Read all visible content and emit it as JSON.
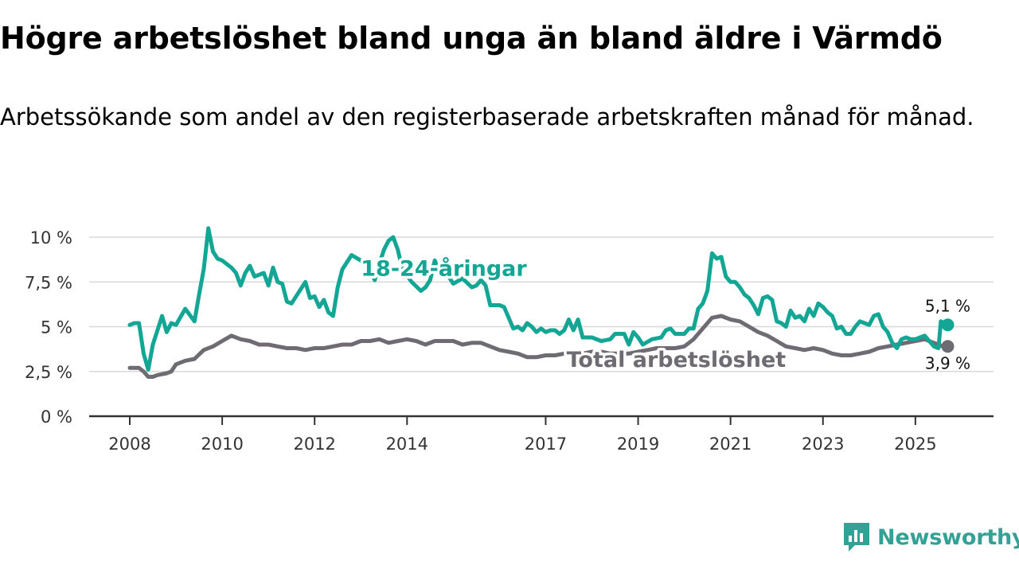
{
  "title": "Högre arbetslöshet bland unga än bland äldre i Värmdö",
  "subtitle": "Arbetssökande som andel av den registerbaserade arbetskraften månad för månad.",
  "brand": {
    "name": "Newsworthy",
    "icon": "newsworthy-logo-icon",
    "color": "#33a196"
  },
  "chart_data": {
    "type": "line",
    "title": "Högre arbetslöshet bland unga än bland äldre i Värmdö",
    "xlabel": "",
    "ylabel": "",
    "xlim": [
      2008,
      2025.95
    ],
    "ylim": [
      0,
      10
    ],
    "grid": true,
    "y_ticks": [
      0,
      2.5,
      5,
      7.5,
      10
    ],
    "y_tick_labels": [
      "0 %",
      "2,5 %",
      "5 %",
      "7,5 %",
      "10 %"
    ],
    "x_ticks": [
      2008,
      2010,
      2012,
      2014,
      2017,
      2019,
      2021,
      2023,
      2025
    ],
    "x_tick_labels": [
      "2008",
      "2010",
      "2012",
      "2014",
      "2017",
      "2019",
      "2021",
      "2023",
      "2025"
    ],
    "series": [
      {
        "name": "18-24-åringar",
        "color": "#13a694",
        "end_value": 5.1,
        "end_label": "5,1 %",
        "points": [
          [
            2008.0,
            5.1
          ],
          [
            2008.1,
            5.2
          ],
          [
            2008.2,
            5.2
          ],
          [
            2008.3,
            3.5
          ],
          [
            2008.4,
            2.6
          ],
          [
            2008.5,
            4.0
          ],
          [
            2008.7,
            5.6
          ],
          [
            2008.8,
            4.7
          ],
          [
            2008.9,
            5.2
          ],
          [
            2009.0,
            5.1
          ],
          [
            2009.2,
            6.0
          ],
          [
            2009.4,
            5.3
          ],
          [
            2009.5,
            6.8
          ],
          [
            2009.6,
            8.2
          ],
          [
            2009.7,
            10.5
          ],
          [
            2009.8,
            9.2
          ],
          [
            2009.9,
            8.8
          ],
          [
            2010.0,
            8.7
          ],
          [
            2010.2,
            8.3
          ],
          [
            2010.3,
            8.0
          ],
          [
            2010.4,
            7.3
          ],
          [
            2010.5,
            8.0
          ],
          [
            2010.6,
            8.4
          ],
          [
            2010.7,
            7.8
          ],
          [
            2010.9,
            8.0
          ],
          [
            2011.0,
            7.3
          ],
          [
            2011.1,
            8.3
          ],
          [
            2011.2,
            7.5
          ],
          [
            2011.3,
            7.4
          ],
          [
            2011.4,
            6.4
          ],
          [
            2011.5,
            6.3
          ],
          [
            2011.6,
            6.7
          ],
          [
            2011.8,
            7.5
          ],
          [
            2011.9,
            6.6
          ],
          [
            2012.0,
            6.7
          ],
          [
            2012.1,
            6.1
          ],
          [
            2012.2,
            6.5
          ],
          [
            2012.3,
            5.8
          ],
          [
            2012.4,
            5.6
          ],
          [
            2012.5,
            7.2
          ],
          [
            2012.6,
            8.2
          ],
          [
            2012.8,
            9.0
          ],
          [
            2013.0,
            8.7
          ],
          [
            2013.2,
            8.2
          ],
          [
            2013.3,
            7.6
          ],
          [
            2013.4,
            8.5
          ],
          [
            2013.5,
            9.3
          ],
          [
            2013.6,
            9.8
          ],
          [
            2013.7,
            10.0
          ],
          [
            2013.8,
            9.3
          ],
          [
            2013.9,
            8.2
          ],
          [
            2014.1,
            7.5
          ],
          [
            2014.3,
            7.0
          ],
          [
            2014.4,
            7.2
          ],
          [
            2014.5,
            7.6
          ],
          [
            2014.6,
            8.7
          ],
          [
            2014.7,
            8.1
          ],
          [
            2014.9,
            7.8
          ],
          [
            2015.0,
            7.4
          ],
          [
            2015.2,
            7.7
          ],
          [
            2015.4,
            7.2
          ],
          [
            2015.5,
            7.3
          ],
          [
            2015.6,
            7.6
          ],
          [
            2015.7,
            7.3
          ],
          [
            2015.8,
            6.2
          ],
          [
            2016.0,
            6.2
          ],
          [
            2016.1,
            6.1
          ],
          [
            2016.2,
            5.5
          ],
          [
            2016.3,
            4.9
          ],
          [
            2016.4,
            5.0
          ],
          [
            2016.5,
            4.8
          ],
          [
            2016.6,
            5.2
          ],
          [
            2016.7,
            5.0
          ],
          [
            2016.8,
            4.7
          ],
          [
            2016.9,
            4.9
          ],
          [
            2017.0,
            4.7
          ],
          [
            2017.1,
            4.8
          ],
          [
            2017.2,
            4.8
          ],
          [
            2017.3,
            4.6
          ],
          [
            2017.4,
            4.8
          ],
          [
            2017.5,
            5.4
          ],
          [
            2017.6,
            4.8
          ],
          [
            2017.7,
            5.4
          ],
          [
            2017.8,
            4.4
          ],
          [
            2018.0,
            4.4
          ],
          [
            2018.2,
            4.2
          ],
          [
            2018.4,
            4.3
          ],
          [
            2018.5,
            4.6
          ],
          [
            2018.7,
            4.6
          ],
          [
            2018.8,
            4.0
          ],
          [
            2018.9,
            4.7
          ],
          [
            2019.0,
            4.4
          ],
          [
            2019.1,
            4.0
          ],
          [
            2019.3,
            4.3
          ],
          [
            2019.5,
            4.4
          ],
          [
            2019.6,
            4.8
          ],
          [
            2019.7,
            4.9
          ],
          [
            2019.8,
            4.6
          ],
          [
            2019.9,
            4.6
          ],
          [
            2020.0,
            4.6
          ],
          [
            2020.1,
            4.9
          ],
          [
            2020.2,
            4.9
          ],
          [
            2020.3,
            6.0
          ],
          [
            2020.4,
            6.3
          ],
          [
            2020.5,
            7.0
          ],
          [
            2020.6,
            9.1
          ],
          [
            2020.7,
            8.8
          ],
          [
            2020.8,
            8.9
          ],
          [
            2020.9,
            7.8
          ],
          [
            2021.0,
            7.5
          ],
          [
            2021.1,
            7.5
          ],
          [
            2021.2,
            7.2
          ],
          [
            2021.3,
            6.8
          ],
          [
            2021.4,
            6.6
          ],
          [
            2021.5,
            6.2
          ],
          [
            2021.6,
            5.7
          ],
          [
            2021.7,
            6.6
          ],
          [
            2021.8,
            6.7
          ],
          [
            2021.9,
            6.5
          ],
          [
            2022.0,
            5.3
          ],
          [
            2022.1,
            5.2
          ],
          [
            2022.2,
            5.0
          ],
          [
            2022.3,
            5.9
          ],
          [
            2022.4,
            5.5
          ],
          [
            2022.5,
            5.6
          ],
          [
            2022.6,
            5.3
          ],
          [
            2022.7,
            6.0
          ],
          [
            2022.8,
            5.6
          ],
          [
            2022.9,
            6.3
          ],
          [
            2023.0,
            6.1
          ],
          [
            2023.1,
            5.8
          ],
          [
            2023.2,
            5.6
          ],
          [
            2023.3,
            4.9
          ],
          [
            2023.4,
            5.0
          ],
          [
            2023.5,
            4.6
          ],
          [
            2023.6,
            4.6
          ],
          [
            2023.7,
            5.0
          ],
          [
            2023.8,
            5.3
          ],
          [
            2023.9,
            5.2
          ],
          [
            2024.0,
            5.1
          ],
          [
            2024.1,
            5.6
          ],
          [
            2024.2,
            5.7
          ],
          [
            2024.3,
            5.0
          ],
          [
            2024.4,
            4.7
          ],
          [
            2024.5,
            4.1
          ],
          [
            2024.6,
            3.8
          ],
          [
            2024.7,
            4.3
          ],
          [
            2024.8,
            4.4
          ],
          [
            2024.9,
            4.3
          ],
          [
            2025.0,
            4.3
          ],
          [
            2025.1,
            4.4
          ],
          [
            2025.2,
            4.5
          ],
          [
            2025.3,
            4.2
          ],
          [
            2025.4,
            3.9
          ],
          [
            2025.5,
            3.8
          ],
          [
            2025.55,
            5.3
          ],
          [
            2025.7,
            5.1
          ]
        ]
      },
      {
        "name": "Total arbetslöshet",
        "color": "#6e6b72",
        "end_value": 3.9,
        "end_label": "3,9 %",
        "points": [
          [
            2008.0,
            2.7
          ],
          [
            2008.2,
            2.7
          ],
          [
            2008.3,
            2.5
          ],
          [
            2008.4,
            2.2
          ],
          [
            2008.5,
            2.2
          ],
          [
            2008.6,
            2.3
          ],
          [
            2008.8,
            2.4
          ],
          [
            2008.9,
            2.5
          ],
          [
            2009.0,
            2.9
          ],
          [
            2009.2,
            3.1
          ],
          [
            2009.4,
            3.2
          ],
          [
            2009.6,
            3.7
          ],
          [
            2009.8,
            3.9
          ],
          [
            2010.0,
            4.2
          ],
          [
            2010.2,
            4.5
          ],
          [
            2010.4,
            4.3
          ],
          [
            2010.6,
            4.2
          ],
          [
            2010.8,
            4.0
          ],
          [
            2011.0,
            4.0
          ],
          [
            2011.2,
            3.9
          ],
          [
            2011.4,
            3.8
          ],
          [
            2011.6,
            3.8
          ],
          [
            2011.8,
            3.7
          ],
          [
            2012.0,
            3.8
          ],
          [
            2012.2,
            3.8
          ],
          [
            2012.4,
            3.9
          ],
          [
            2012.6,
            4.0
          ],
          [
            2012.8,
            4.0
          ],
          [
            2013.0,
            4.2
          ],
          [
            2013.2,
            4.2
          ],
          [
            2013.4,
            4.3
          ],
          [
            2013.6,
            4.1
          ],
          [
            2013.8,
            4.2
          ],
          [
            2014.0,
            4.3
          ],
          [
            2014.2,
            4.2
          ],
          [
            2014.4,
            4.0
          ],
          [
            2014.6,
            4.2
          ],
          [
            2014.8,
            4.2
          ],
          [
            2015.0,
            4.2
          ],
          [
            2015.2,
            4.0
          ],
          [
            2015.4,
            4.1
          ],
          [
            2015.6,
            4.1
          ],
          [
            2015.8,
            3.9
          ],
          [
            2016.0,
            3.7
          ],
          [
            2016.2,
            3.6
          ],
          [
            2016.4,
            3.5
          ],
          [
            2016.6,
            3.3
          ],
          [
            2016.8,
            3.3
          ],
          [
            2017.0,
            3.4
          ],
          [
            2017.2,
            3.4
          ],
          [
            2017.4,
            3.5
          ],
          [
            2017.6,
            3.5
          ],
          [
            2017.8,
            3.5
          ],
          [
            2018.0,
            3.6
          ],
          [
            2018.2,
            3.6
          ],
          [
            2018.4,
            3.5
          ],
          [
            2018.6,
            3.5
          ],
          [
            2018.8,
            3.5
          ],
          [
            2019.0,
            3.6
          ],
          [
            2019.2,
            3.7
          ],
          [
            2019.4,
            3.8
          ],
          [
            2019.6,
            3.8
          ],
          [
            2019.8,
            3.8
          ],
          [
            2020.0,
            3.9
          ],
          [
            2020.2,
            4.3
          ],
          [
            2020.4,
            4.9
          ],
          [
            2020.6,
            5.5
          ],
          [
            2020.8,
            5.6
          ],
          [
            2021.0,
            5.4
          ],
          [
            2021.2,
            5.3
          ],
          [
            2021.4,
            5.0
          ],
          [
            2021.6,
            4.7
          ],
          [
            2021.8,
            4.5
          ],
          [
            2022.0,
            4.2
          ],
          [
            2022.2,
            3.9
          ],
          [
            2022.4,
            3.8
          ],
          [
            2022.6,
            3.7
          ],
          [
            2022.8,
            3.8
          ],
          [
            2023.0,
            3.7
          ],
          [
            2023.2,
            3.5
          ],
          [
            2023.4,
            3.4
          ],
          [
            2023.6,
            3.4
          ],
          [
            2023.8,
            3.5
          ],
          [
            2024.0,
            3.6
          ],
          [
            2024.2,
            3.8
          ],
          [
            2024.4,
            3.9
          ],
          [
            2024.6,
            4.0
          ],
          [
            2024.8,
            4.1
          ],
          [
            2025.0,
            4.2
          ],
          [
            2025.2,
            4.3
          ],
          [
            2025.4,
            4.1
          ],
          [
            2025.6,
            3.9
          ],
          [
            2025.7,
            3.9
          ]
        ]
      }
    ],
    "annotations": [
      {
        "series": "18-24-åringar",
        "text": "18-24-åringar",
        "at": [
          2013.0,
          8.3
        ]
      },
      {
        "series": "Total arbetslöshet",
        "text": "Total arbetslöshet",
        "at": [
          2017.45,
          3.2
        ]
      }
    ]
  }
}
